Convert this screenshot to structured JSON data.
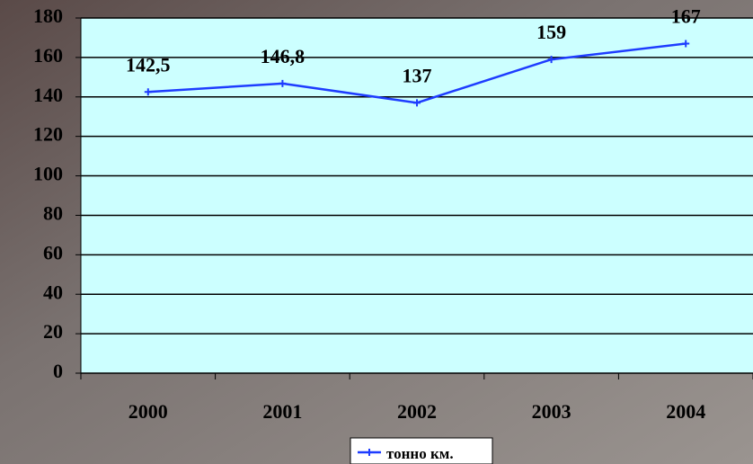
{
  "chart_data": {
    "type": "line",
    "categories": [
      "2000",
      "2001",
      "2002",
      "2003",
      "2004"
    ],
    "series": [
      {
        "name": "тонно км.",
        "color": "#1e3cff",
        "values": [
          142.5,
          146.8,
          137,
          159,
          167
        ],
        "value_labels": [
          "142,5",
          "146,8",
          "137",
          "159",
          "167"
        ]
      }
    ],
    "ylim": [
      0,
      180
    ],
    "yticks": [
      0,
      20,
      40,
      60,
      80,
      100,
      120,
      140,
      160,
      180
    ],
    "grid": true,
    "legend": "bottom"
  }
}
